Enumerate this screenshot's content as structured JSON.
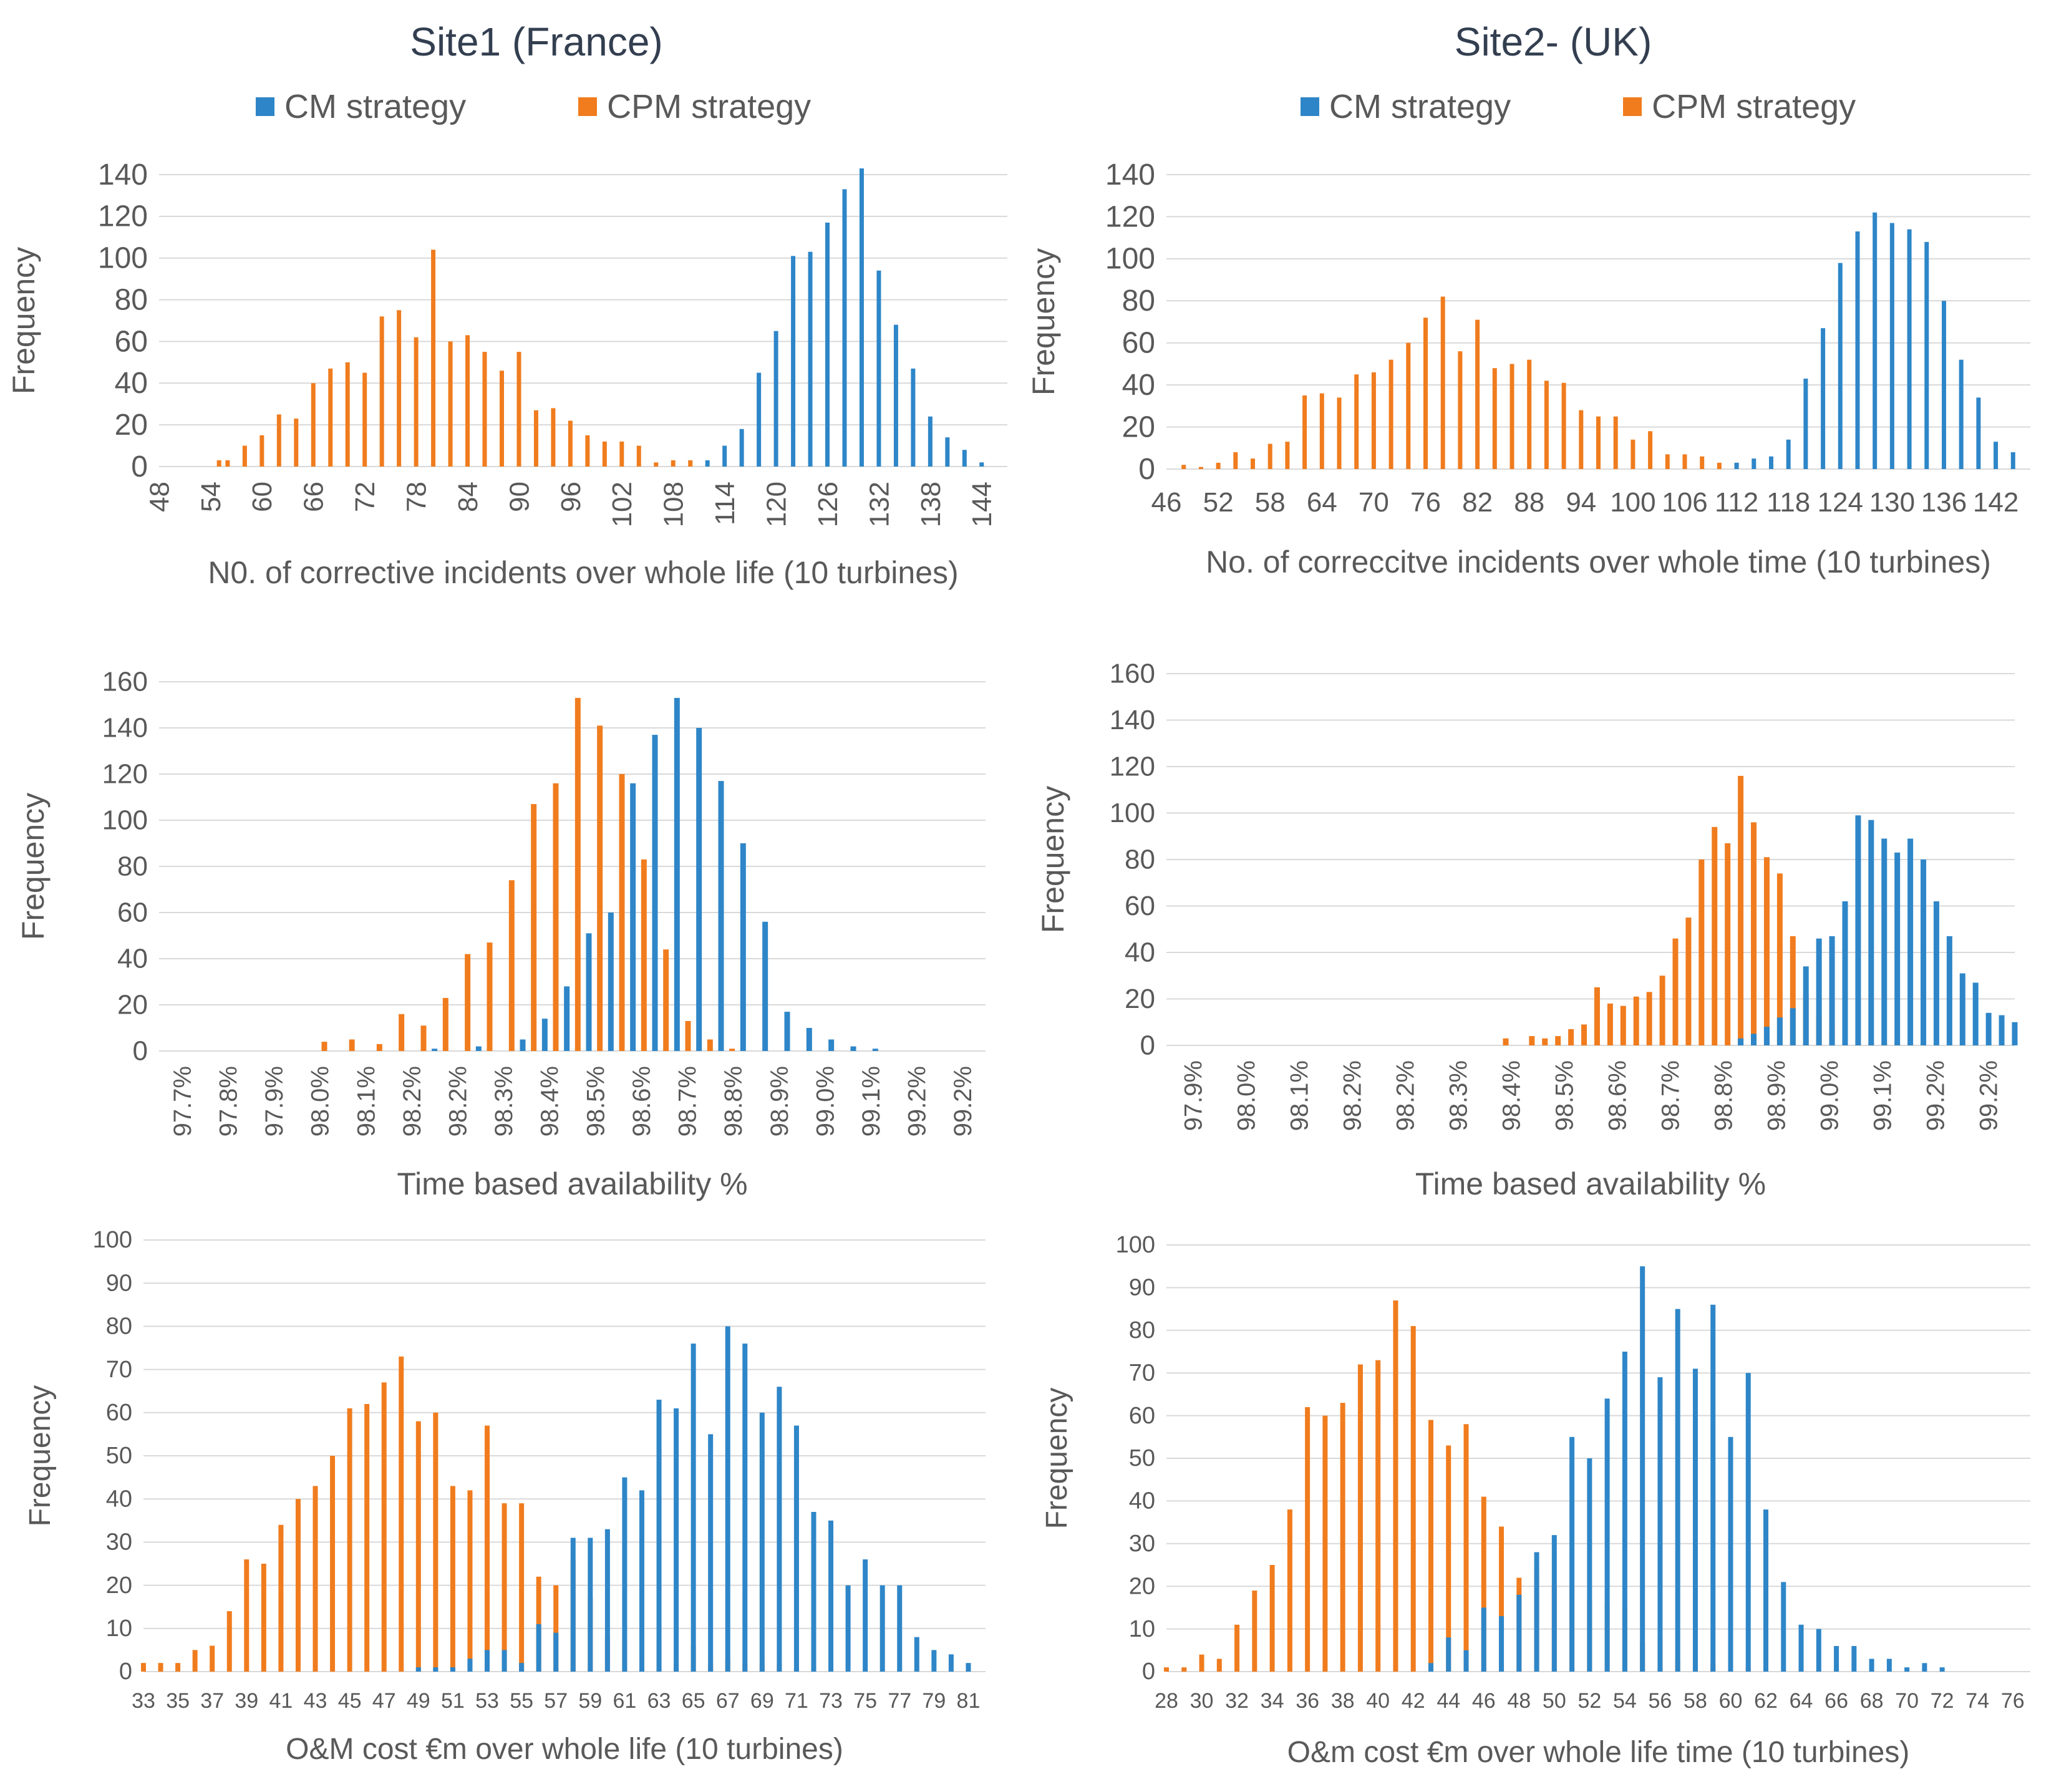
{
  "figure": {
    "site1_title": "Site1 (France)",
    "site2_title": "Site2- (UK)",
    "legend": {
      "cm": "CM strategy",
      "cpm": "CPM strategy"
    },
    "colors": {
      "cm": "#2e86c8",
      "cpm": "#f07c1e",
      "grid": "#d9d9d9",
      "text": "#595959",
      "title": "#333f50"
    }
  },
  "chart_data": [
    {
      "type": "bar",
      "id": "site1-incidents",
      "title": "Site1 (France)",
      "xlabel": "N0. of corrective incidents over whole life (10 turbines)",
      "ylabel": "Frequency",
      "ylim": [
        0,
        140
      ],
      "yticks": [
        0,
        20,
        40,
        60,
        80,
        100,
        120,
        140
      ],
      "xlim": [
        48,
        147
      ],
      "xticks": [
        "48",
        "54",
        "60",
        "66",
        "72",
        "78",
        "84",
        "90",
        "96",
        "102",
        "108",
        "114",
        "120",
        "126",
        "132",
        "138",
        "144"
      ],
      "xtick_values": [
        48,
        54,
        60,
        66,
        72,
        78,
        84,
        90,
        96,
        102,
        108,
        114,
        120,
        126,
        132,
        138,
        144
      ],
      "tick_rotation": -90,
      "series": [
        {
          "name": "CPM strategy",
          "x": [
            55,
            56,
            58,
            60,
            62,
            64,
            66,
            68,
            70,
            72,
            74,
            76,
            78,
            80,
            82,
            84,
            86,
            88,
            90,
            92,
            94,
            96,
            98,
            100,
            102,
            104,
            106,
            108,
            110
          ],
          "values": [
            3,
            3,
            10,
            15,
            25,
            23,
            40,
            47,
            50,
            45,
            72,
            75,
            62,
            104,
            60,
            63,
            55,
            46,
            55,
            27,
            28,
            22,
            15,
            12,
            12,
            10,
            2,
            3,
            3
          ]
        },
        {
          "name": "CM strategy",
          "x": [
            112,
            114,
            116,
            118,
            120,
            122,
            124,
            126,
            128,
            130,
            132,
            134,
            136,
            138,
            140,
            142,
            144
          ],
          "values": [
            3,
            10,
            18,
            45,
            65,
            101,
            103,
            117,
            133,
            143,
            94,
            68,
            47,
            24,
            14,
            8,
            2
          ]
        }
      ]
    },
    {
      "type": "bar",
      "id": "site2-incidents",
      "title": "Site2- (UK)",
      "xlabel": "No. of correccitve incidents over whole time (10 turbines)",
      "ylabel": "Frequency",
      "ylim": [
        0,
        140
      ],
      "yticks": [
        0,
        20,
        40,
        60,
        80,
        100,
        120,
        140
      ],
      "xlim": [
        46,
        146
      ],
      "xticks": [
        "46",
        "52",
        "58",
        "64",
        "70",
        "76",
        "82",
        "88",
        "94",
        "100",
        "106",
        "112",
        "118",
        "124",
        "130",
        "136",
        "142"
      ],
      "xtick_values": [
        46,
        52,
        58,
        64,
        70,
        76,
        82,
        88,
        94,
        100,
        106,
        112,
        118,
        124,
        130,
        136,
        142
      ],
      "tick_rotation": 0,
      "series": [
        {
          "name": "CPM strategy",
          "x": [
            48,
            50,
            52,
            54,
            56,
            58,
            60,
            62,
            64,
            66,
            68,
            70,
            72,
            74,
            76,
            78,
            80,
            82,
            84,
            86,
            88,
            90,
            92,
            94,
            96,
            98,
            100,
            102,
            104,
            106,
            108,
            110,
            112
          ],
          "values": [
            2,
            1,
            3,
            8,
            5,
            12,
            13,
            35,
            36,
            34,
            45,
            46,
            52,
            60,
            72,
            82,
            56,
            71,
            48,
            50,
            52,
            42,
            41,
            28,
            25,
            25,
            14,
            18,
            7,
            7,
            6,
            3,
            3
          ]
        },
        {
          "name": "CM strategy",
          "x": [
            112,
            114,
            116,
            118,
            120,
            122,
            124,
            126,
            128,
            130,
            132,
            134,
            136,
            138,
            140,
            142,
            144
          ],
          "values": [
            3,
            5,
            6,
            14,
            43,
            67,
            98,
            113,
            122,
            117,
            114,
            108,
            80,
            52,
            34,
            13,
            8
          ]
        }
      ]
    },
    {
      "type": "bar",
      "id": "site1-availability",
      "xlabel": "Time based availability %",
      "ylabel": "Frequency",
      "ylim": [
        0,
        160
      ],
      "yticks": [
        0,
        20,
        40,
        60,
        80,
        100,
        120,
        140,
        160
      ],
      "xlim": [
        97.7,
        99.2
      ],
      "xticks": [
        "97.7%",
        "97.8%",
        "97.9%",
        "98.0%",
        "98.1%",
        "98.2%",
        "98.2%",
        "98.3%",
        "98.4%",
        "98.5%",
        "98.6%",
        "98.7%",
        "98.8%",
        "98.9%",
        "99.0%",
        "99.1%",
        "99.2%",
        "99.2%"
      ],
      "tick_rotation": -90,
      "series": [
        {
          "name": "CPM strategy",
          "x": [
            98.0,
            98.05,
            98.1,
            98.14,
            98.18,
            98.22,
            98.26,
            98.3,
            98.34,
            98.38,
            98.42,
            98.46,
            98.5,
            98.54,
            98.58,
            98.62,
            98.66,
            98.7,
            98.74
          ],
          "values": [
            4,
            5,
            3,
            16,
            11,
            23,
            42,
            47,
            74,
            107,
            116,
            153,
            141,
            120,
            83,
            44,
            13,
            5,
            1
          ]
        },
        {
          "name": "CM strategy",
          "x": [
            98.2,
            98.28,
            98.36,
            98.4,
            98.44,
            98.48,
            98.52,
            98.56,
            98.6,
            98.64,
            98.68,
            98.72,
            98.76,
            98.8,
            98.84,
            98.88,
            98.92,
            98.96,
            99.0
          ],
          "values": [
            1,
            2,
            5,
            14,
            28,
            51,
            60,
            116,
            137,
            153,
            140,
            117,
            90,
            56,
            17,
            10,
            5,
            2,
            1
          ]
        }
      ]
    },
    {
      "type": "bar",
      "id": "site2-availability",
      "xlabel": "Time  based  availability %",
      "ylabel": "Frequency",
      "ylim": [
        0,
        160
      ],
      "yticks": [
        0,
        20,
        40,
        60,
        80,
        100,
        120,
        140,
        160
      ],
      "xlim": [
        97.9,
        99.2
      ],
      "xticks": [
        "97.9%",
        "98.0%",
        "98.1%",
        "98.2%",
        "98.2%",
        "98.3%",
        "98.4%",
        "98.5%",
        "98.6%",
        "98.7%",
        "98.8%",
        "98.9%",
        "99.0%",
        "99.1%",
        "99.2%",
        "99.2%"
      ],
      "tick_rotation": -90,
      "series": [
        {
          "name": "CPM strategy",
          "x": [
            98.42,
            98.46,
            98.48,
            98.5,
            98.52,
            98.54,
            98.56,
            98.58,
            98.6,
            98.62,
            98.64,
            98.66,
            98.68,
            98.7,
            98.72,
            98.74,
            98.76,
            98.78,
            98.8,
            98.82,
            98.84,
            98.86,
            98.88,
            98.9,
            98.92,
            98.94,
            98.96,
            98.98,
            99.0,
            99.02,
            99.04,
            99.06
          ],
          "values": [
            3,
            4,
            3,
            4,
            7,
            9,
            25,
            18,
            17,
            21,
            23,
            30,
            46,
            55,
            80,
            94,
            87,
            116,
            96,
            81,
            74,
            47,
            22,
            13,
            8,
            3,
            2,
            1,
            1,
            1,
            1,
            1
          ]
        },
        {
          "name": "CM strategy",
          "x": [
            98.78,
            98.8,
            98.82,
            98.84,
            98.86,
            98.88,
            98.9,
            98.92,
            98.94,
            98.96,
            98.98,
            99.0,
            99.02,
            99.04,
            99.06,
            99.08,
            99.1,
            99.12,
            99.14,
            99.16,
            99.18,
            99.2
          ],
          "values": [
            3,
            5,
            8,
            12,
            16,
            34,
            46,
            47,
            62,
            99,
            97,
            89,
            83,
            89,
            80,
            62,
            47,
            31,
            27,
            14,
            13,
            10
          ]
        }
      ]
    },
    {
      "type": "bar",
      "id": "site1-cost",
      "xlabel": "O&M cost €m over whole life (10 turbines)",
      "ylabel": "Frequency",
      "ylim": [
        0,
        100
      ],
      "yticks": [
        0,
        10,
        20,
        30,
        40,
        50,
        60,
        70,
        80,
        90,
        100
      ],
      "xlim": [
        33,
        82
      ],
      "xticks": [
        "33",
        "35",
        "37",
        "39",
        "41",
        "43",
        "45",
        "47",
        "49",
        "51",
        "53",
        "55",
        "57",
        "59",
        "61",
        "63",
        "65",
        "67",
        "69",
        "71",
        "73",
        "75",
        "77",
        "79",
        "81"
      ],
      "xtick_values": [
        33,
        35,
        37,
        39,
        41,
        43,
        45,
        47,
        49,
        51,
        53,
        55,
        57,
        59,
        61,
        63,
        65,
        67,
        69,
        71,
        73,
        75,
        77,
        79,
        81
      ],
      "tick_rotation": 0,
      "series": [
        {
          "name": "CPM strategy",
          "x": [
            33,
            34,
            35,
            36,
            37,
            38,
            39,
            40,
            41,
            42,
            43,
            44,
            45,
            46,
            47,
            48,
            49,
            50,
            51,
            52,
            53,
            54,
            55,
            56,
            57,
            58,
            59,
            60,
            61,
            62,
            63,
            64,
            65,
            66,
            67,
            68,
            69,
            70,
            71,
            72
          ],
          "values": [
            2,
            2,
            2,
            5,
            6,
            14,
            26,
            25,
            34,
            40,
            43,
            50,
            61,
            62,
            67,
            73,
            58,
            60,
            43,
            42,
            57,
            39,
            39,
            22,
            20,
            26,
            17,
            8,
            7,
            3,
            7,
            2,
            6,
            2,
            3,
            2,
            2,
            2,
            1,
            1
          ]
        },
        {
          "name": "CM strategy",
          "x": [
            49,
            50,
            51,
            52,
            53,
            54,
            55,
            56,
            57,
            58,
            59,
            60,
            61,
            62,
            63,
            64,
            65,
            66,
            67,
            68,
            69,
            70,
            71,
            72,
            73,
            74,
            75,
            76,
            77,
            78,
            79,
            80,
            81
          ],
          "values": [
            1,
            1,
            1,
            3,
            5,
            5,
            2,
            11,
            9,
            31,
            31,
            33,
            45,
            42,
            63,
            61,
            76,
            55,
            80,
            76,
            60,
            66,
            57,
            37,
            35,
            20,
            26,
            20,
            20,
            8,
            5,
            4,
            2
          ]
        }
      ]
    },
    {
      "type": "bar",
      "id": "site2-cost",
      "xlabel": "O&m cost €m over whole life time (10 turbines)",
      "ylabel": "Frequency",
      "ylim": [
        0,
        100
      ],
      "yticks": [
        0,
        10,
        20,
        30,
        40,
        50,
        60,
        70,
        80,
        90,
        100
      ],
      "xlim": [
        28,
        77
      ],
      "xticks": [
        "28",
        "30",
        "32",
        "34",
        "36",
        "38",
        "40",
        "42",
        "44",
        "46",
        "48",
        "50",
        "52",
        "54",
        "56",
        "58",
        "60",
        "62",
        "64",
        "66",
        "68",
        "70",
        "72",
        "74",
        "76"
      ],
      "xtick_values": [
        28,
        30,
        32,
        34,
        36,
        38,
        40,
        42,
        44,
        46,
        48,
        50,
        52,
        54,
        56,
        58,
        60,
        62,
        64,
        66,
        68,
        70,
        72,
        74,
        76
      ],
      "tick_rotation": 0,
      "series": [
        {
          "name": "CPM strategy",
          "x": [
            28,
            29,
            30,
            31,
            32,
            33,
            34,
            35,
            36,
            37,
            38,
            39,
            40,
            41,
            42,
            43,
            44,
            45,
            46,
            47,
            48,
            49,
            50,
            51,
            52,
            53,
            54,
            55,
            56,
            57,
            58,
            59,
            60,
            61,
            62
          ],
          "values": [
            1,
            1,
            4,
            3,
            11,
            19,
            25,
            38,
            62,
            60,
            63,
            72,
            73,
            87,
            81,
            59,
            53,
            58,
            41,
            34,
            22,
            24,
            20,
            20,
            17,
            16,
            15,
            7,
            8,
            3,
            4,
            2,
            3,
            1,
            1
          ]
        },
        {
          "name": "CM strategy",
          "x": [
            43,
            44,
            45,
            46,
            47,
            48,
            49,
            50,
            51,
            52,
            53,
            54,
            55,
            56,
            57,
            58,
            59,
            60,
            61,
            62,
            63,
            64,
            65,
            66,
            67,
            68,
            69,
            70,
            71,
            72
          ],
          "values": [
            2,
            8,
            5,
            15,
            13,
            18,
            28,
            32,
            55,
            50,
            64,
            75,
            95,
            69,
            85,
            71,
            86,
            55,
            70,
            38,
            21,
            11,
            10,
            6,
            6,
            3,
            3,
            1,
            2,
            1
          ]
        }
      ]
    }
  ]
}
